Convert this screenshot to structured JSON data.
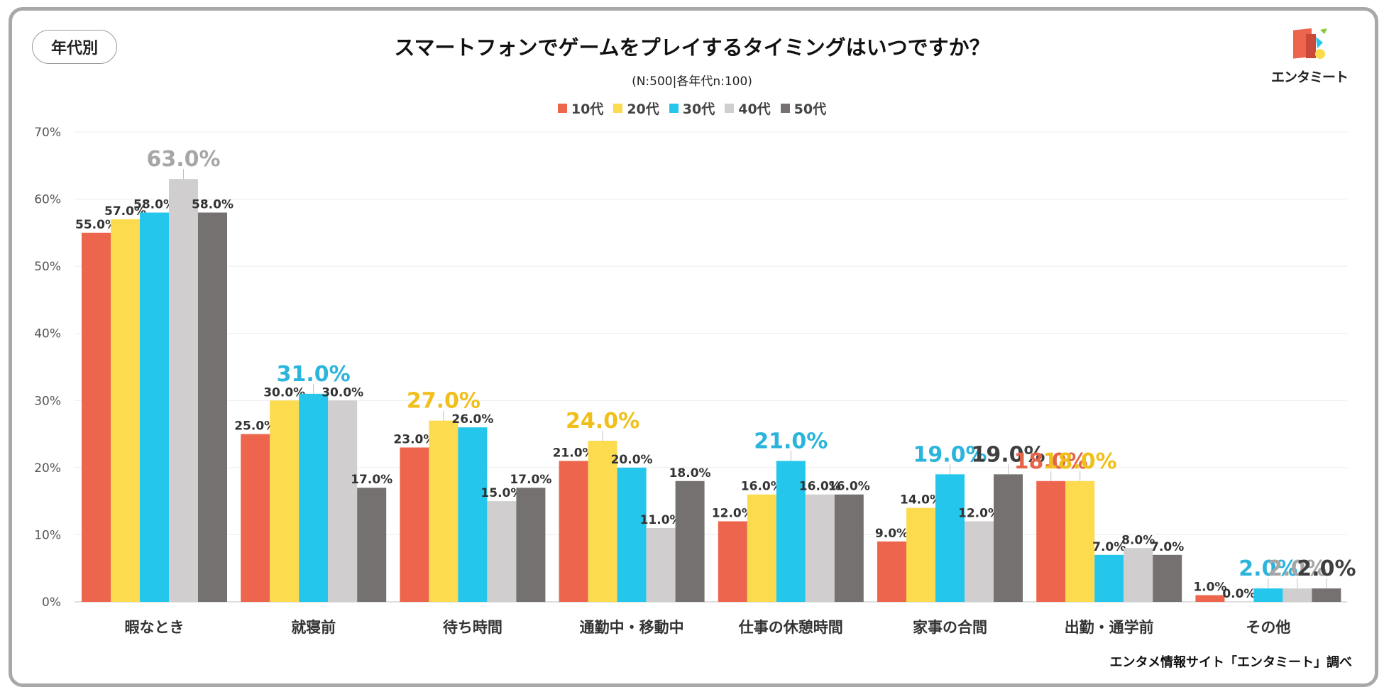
{
  "badge_label": "年代別",
  "logo_text": "エンタミート",
  "footer": "エンタメ情報サイト「エンタミート」調べ",
  "chart_data": {
    "type": "bar",
    "title": "スマートフォンでゲームをプレイするタイミングはいつですか？",
    "subtitle": "(N:500|各年代n:100)",
    "ylim": [
      0,
      70
    ],
    "yticks": [
      0,
      10,
      20,
      30,
      40,
      50,
      60,
      70
    ],
    "ytick_labels": [
      "0%",
      "10%",
      "20%",
      "30%",
      "40%",
      "50%",
      "60%",
      "70%"
    ],
    "grid": true,
    "legend_position": "top-center",
    "categories": [
      "暇なとき",
      "就寝前",
      "待ち時間",
      "通勤中・移動中",
      "仕事の休憩時間",
      "家事の合間",
      "出勤・通学前",
      "その他"
    ],
    "series": [
      {
        "name": "10代",
        "color": "#ee654d",
        "values": [
          55.0,
          25.0,
          23.0,
          21.0,
          12.0,
          9.0,
          18.0,
          1.0
        ]
      },
      {
        "name": "20代",
        "color": "#fcdb4f",
        "values": [
          57.0,
          30.0,
          27.0,
          24.0,
          16.0,
          14.0,
          18.0,
          0.0
        ]
      },
      {
        "name": "30代",
        "color": "#25c6ec",
        "values": [
          58.0,
          31.0,
          26.0,
          20.0,
          21.0,
          19.0,
          7.0,
          2.0
        ]
      },
      {
        "name": "40代",
        "color": "#d0cecf",
        "values": [
          63.0,
          30.0,
          15.0,
          11.0,
          16.0,
          12.0,
          8.0,
          2.0
        ]
      },
      {
        "name": "50代",
        "color": "#767171",
        "values": [
          58.0,
          17.0,
          17.0,
          18.0,
          16.0,
          19.0,
          7.0,
          2.0
        ]
      }
    ],
    "highlight_label_colors": {
      "10代": "#e4644a",
      "20代": "#f0bf1a",
      "30代": "#2bb4dc",
      "40代": "#a6a6a6",
      "50代": "#3f3f3f"
    },
    "highlighted": [
      [
        0,
        3
      ],
      [
        1,
        2
      ],
      [
        2,
        1
      ],
      [
        3,
        1
      ],
      [
        4,
        2
      ],
      [
        5,
        2
      ],
      [
        5,
        4
      ],
      [
        6,
        0
      ],
      [
        6,
        1
      ],
      [
        7,
        2
      ],
      [
        7,
        3
      ],
      [
        7,
        4
      ]
    ]
  }
}
